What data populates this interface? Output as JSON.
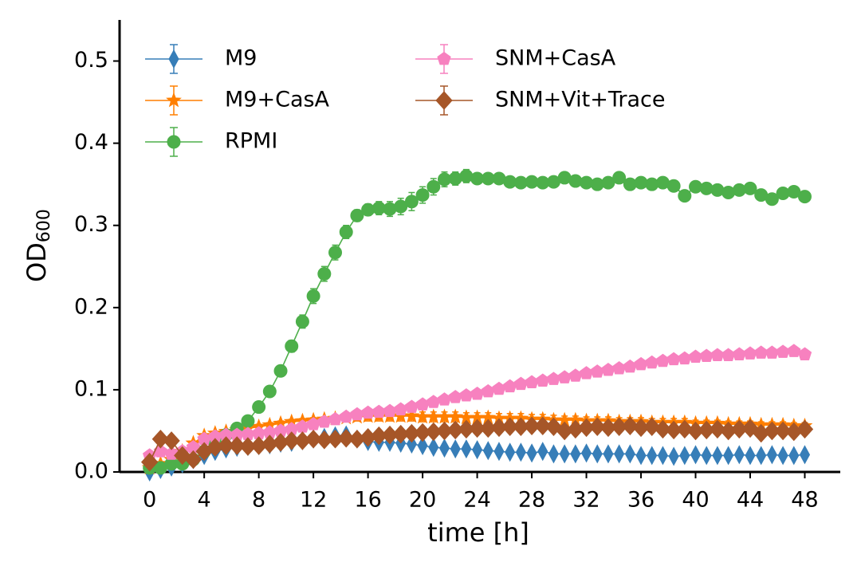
{
  "chart_data": {
    "type": "line",
    "xlabel": "time [h]",
    "ylabel": {
      "text": "OD",
      "subscript": "600"
    },
    "xlim": [
      -2.2,
      50.6
    ],
    "ylim": [
      0,
      0.55
    ],
    "xticks": [
      0,
      4,
      8,
      12,
      16,
      20,
      24,
      28,
      32,
      36,
      40,
      44,
      48
    ],
    "yticks": [
      {
        "value": 0,
        "label": "0.0"
      },
      0.1,
      0.2,
      0.3,
      0.4,
      0.5
    ],
    "legend": "upper left",
    "x": [
      0,
      0.8,
      1.6,
      2.4,
      3.2,
      4,
      4.8,
      5.6,
      6.4,
      7.2,
      8,
      8.8,
      9.6,
      10.4,
      11.2,
      12,
      12.8,
      13.6,
      14.4,
      15.2,
      16,
      16.8,
      17.6,
      18.4,
      19.2,
      20,
      20.8,
      21.6,
      22.4,
      23.2,
      24,
      24.8,
      25.6,
      26.4,
      27.2,
      28,
      28.8,
      29.6,
      30.4,
      31.2,
      32,
      32.8,
      33.6,
      34.4,
      35.2,
      36,
      36.8,
      37.6,
      38.4,
      39.2,
      40,
      40.8,
      41.6,
      42.4,
      43.2,
      44,
      44.8,
      45.6,
      46.4,
      47.2,
      48
    ],
    "series": [
      {
        "name": "M9",
        "color": "#377eb8",
        "marker": "thin-diamond",
        "values": [
          0.0,
          0.003,
          0.006,
          0.01,
          0.015,
          0.02,
          0.025,
          0.028,
          0.03,
          0.031,
          0.032,
          0.033,
          0.035,
          0.036,
          0.038,
          0.04,
          0.042,
          0.044,
          0.045,
          0.04,
          0.037,
          0.036,
          0.036,
          0.035,
          0.034,
          0.032,
          0.03,
          0.029,
          0.028,
          0.028,
          0.027,
          0.026,
          0.025,
          0.024,
          0.024,
          0.023,
          0.025,
          0.022,
          0.022,
          0.022,
          0.023,
          0.022,
          0.022,
          0.022,
          0.022,
          0.02,
          0.02,
          0.02,
          0.019,
          0.02,
          0.021,
          0.02,
          0.02,
          0.02,
          0.021,
          0.02,
          0.02,
          0.021,
          0.02,
          0.02,
          0.021
        ]
      },
      {
        "name": "M9+CasA",
        "color": "#ff7f00",
        "marker": "star",
        "values": [
          0.005,
          0.01,
          0.015,
          0.025,
          0.035,
          0.044,
          0.047,
          0.049,
          0.051,
          0.053,
          0.055,
          0.057,
          0.059,
          0.061,
          0.062,
          0.063,
          0.064,
          0.065,
          0.066,
          0.067,
          0.068,
          0.068,
          0.068,
          0.068,
          0.068,
          0.067,
          0.067,
          0.067,
          0.067,
          0.066,
          0.066,
          0.066,
          0.065,
          0.065,
          0.065,
          0.064,
          0.064,
          0.063,
          0.063,
          0.063,
          0.062,
          0.062,
          0.062,
          0.061,
          0.061,
          0.061,
          0.06,
          0.06,
          0.06,
          0.06,
          0.059,
          0.059,
          0.059,
          0.058,
          0.058,
          0.058,
          0.057,
          0.057,
          0.057,
          0.056,
          0.056
        ],
        "errors": [
          0.002,
          0.002,
          0.002,
          0.002,
          0.002,
          0.002,
          0.002,
          0.002,
          0.002,
          0.002,
          0.003,
          0.003,
          0.003,
          0.003,
          0.003,
          0.003,
          0.003,
          0.004,
          0.004,
          0.005,
          0.006,
          0.006,
          0.006,
          0.006,
          0.006,
          0.006,
          0.006,
          0.006,
          0.006,
          0.006,
          0.006,
          0.006,
          0.006,
          0.006,
          0.006,
          0.006,
          0.006,
          0.006,
          0.005,
          0.005,
          0.005,
          0.005,
          0.005,
          0.005,
          0.005,
          0.005,
          0.005,
          0.005,
          0.005,
          0.005,
          0.004,
          0.004,
          0.004,
          0.004,
          0.004,
          0.004,
          0.004,
          0.004,
          0.004,
          0.004,
          0.004
        ]
      },
      {
        "name": "RPMI",
        "color": "#4daf4a",
        "marker": "circle",
        "values": [
          0.005,
          0.005,
          0.01,
          0.01,
          0.015,
          0.025,
          0.035,
          0.045,
          0.053,
          0.062,
          0.079,
          0.098,
          0.123,
          0.153,
          0.183,
          0.214,
          0.241,
          0.267,
          0.292,
          0.312,
          0.319,
          0.321,
          0.32,
          0.323,
          0.329,
          0.337,
          0.347,
          0.356,
          0.357,
          0.36,
          0.357,
          0.357,
          0.357,
          0.353,
          0.352,
          0.353,
          0.352,
          0.353,
          0.358,
          0.354,
          0.352,
          0.35,
          0.352,
          0.358,
          0.35,
          0.352,
          0.35,
          0.352,
          0.348,
          0.336,
          0.347,
          0.345,
          0.343,
          0.34,
          0.343,
          0.345,
          0.337,
          0.332,
          0.339,
          0.341,
          0.335
        ],
        "errors": [
          0.003,
          0.003,
          0.003,
          0.003,
          0.003,
          0.003,
          0.003,
          0.003,
          0.003,
          0.003,
          0.004,
          0.005,
          0.006,
          0.007,
          0.008,
          0.009,
          0.009,
          0.009,
          0.008,
          0.007,
          0.007,
          0.008,
          0.009,
          0.01,
          0.011,
          0.01,
          0.01,
          0.009,
          0.008,
          0.008,
          0.005,
          0.005,
          0.005,
          0.004,
          0.004,
          0.004,
          0.004,
          0.005,
          0.005,
          0.004,
          0.004,
          0.004,
          0.004,
          0.004,
          0.004,
          0.004,
          0.004,
          0.004,
          0.004,
          0.004,
          0.004,
          0.004,
          0.004,
          0.004,
          0.004,
          0.004,
          0.004,
          0.004,
          0.004,
          0.004,
          0.004
        ]
      },
      {
        "name": "SNM+CasA",
        "color": "#f781bf",
        "marker": "pentagon",
        "values": [
          0.02,
          0.025,
          0.022,
          0.025,
          0.03,
          0.04,
          0.043,
          0.045,
          0.045,
          0.046,
          0.047,
          0.048,
          0.05,
          0.052,
          0.055,
          0.058,
          0.061,
          0.064,
          0.067,
          0.07,
          0.072,
          0.073,
          0.074,
          0.076,
          0.079,
          0.082,
          0.085,
          0.088,
          0.091,
          0.093,
          0.095,
          0.098,
          0.101,
          0.104,
          0.107,
          0.109,
          0.111,
          0.113,
          0.115,
          0.117,
          0.12,
          0.122,
          0.124,
          0.126,
          0.128,
          0.131,
          0.133,
          0.135,
          0.137,
          0.138,
          0.14,
          0.141,
          0.142,
          0.142,
          0.143,
          0.144,
          0.145,
          0.145,
          0.146,
          0.147,
          0.143
        ]
      },
      {
        "name": "SNM+Vit+Trace",
        "color": "#a65628",
        "marker": "diamond",
        "values": [
          0.012,
          0.04,
          0.038,
          0.02,
          0.015,
          0.025,
          0.03,
          0.032,
          0.032,
          0.031,
          0.032,
          0.034,
          0.036,
          0.038,
          0.038,
          0.04,
          0.039,
          0.04,
          0.041,
          0.04,
          0.042,
          0.044,
          0.045,
          0.046,
          0.047,
          0.048,
          0.049,
          0.05,
          0.051,
          0.052,
          0.053,
          0.053,
          0.054,
          0.055,
          0.055,
          0.056,
          0.056,
          0.055,
          0.05,
          0.052,
          0.054,
          0.055,
          0.054,
          0.055,
          0.056,
          0.054,
          0.055,
          0.052,
          0.051,
          0.052,
          0.05,
          0.051,
          0.052,
          0.05,
          0.052,
          0.053,
          0.047,
          0.05,
          0.05,
          0.049,
          0.052
        ]
      }
    ]
  }
}
